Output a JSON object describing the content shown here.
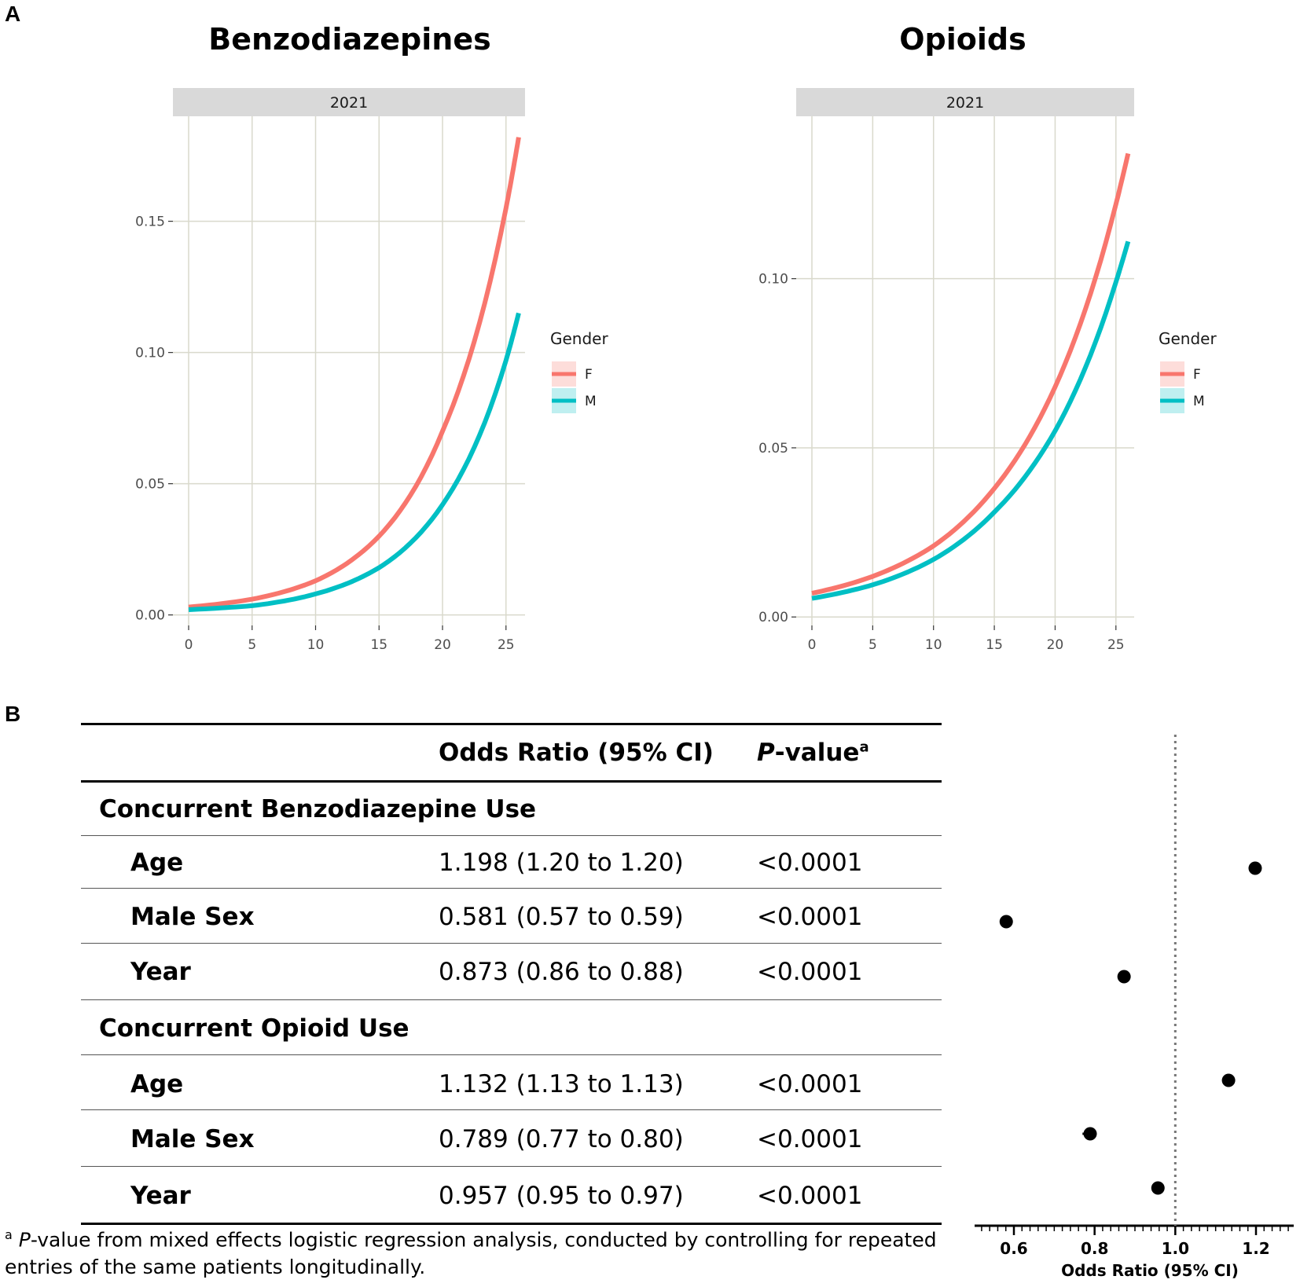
{
  "panel_labels": {
    "a": "A",
    "b": "B"
  },
  "colors": {
    "female": "#F8766D",
    "male": "#00BFC4",
    "strip": "#D9D9D9",
    "grid": "#D9D9CC"
  },
  "chart_data": [
    {
      "id": "benzo",
      "type": "line",
      "title": "Benzodiazepines",
      "facet_label": "2021",
      "xlabel": "",
      "ylabel": "",
      "xlim": [
        0,
        26.5
      ],
      "ylim": [
        -0.004,
        0.19
      ],
      "x_ticks": [
        "0",
        "5",
        "10",
        "15",
        "20",
        "25"
      ],
      "x_tick_values": [
        0,
        5,
        10,
        15,
        20,
        25
      ],
      "y_ticks": [
        "0.00",
        "0.05",
        "0.10",
        "0.15"
      ],
      "y_tick_values": [
        0.0,
        0.05,
        0.1,
        0.15
      ],
      "legend": {
        "title": "Gender",
        "position": "right",
        "entries": [
          "F",
          "M"
        ]
      },
      "series": [
        {
          "name": "F",
          "x": [
            0,
            5,
            10,
            15,
            20,
            25,
            26
          ],
          "values": [
            0.003,
            0.006,
            0.013,
            0.03,
            0.07,
            0.155,
            0.182
          ]
        },
        {
          "name": "M",
          "x": [
            0,
            5,
            10,
            15,
            20,
            25,
            26
          ],
          "values": [
            0.002,
            0.0035,
            0.008,
            0.018,
            0.042,
            0.097,
            0.115
          ]
        }
      ]
    },
    {
      "id": "opioid",
      "type": "line",
      "title": "Opioids",
      "facet_label": "2021",
      "xlabel": "",
      "ylabel": "",
      "xlim": [
        0,
        26.5
      ],
      "ylim": [
        -0.0025,
        0.148
      ],
      "x_ticks": [
        "0",
        "5",
        "10",
        "15",
        "20",
        "25"
      ],
      "x_tick_values": [
        0,
        5,
        10,
        15,
        20,
        25
      ],
      "y_ticks": [
        "0.00",
        "0.05",
        "0.10"
      ],
      "y_tick_values": [
        0.0,
        0.05,
        0.1
      ],
      "legend": {
        "title": "Gender",
        "position": "right",
        "entries": [
          "F",
          "M"
        ]
      },
      "series": [
        {
          "name": "F",
          "x": [
            0,
            5,
            10,
            15,
            20,
            25,
            26
          ],
          "values": [
            0.007,
            0.012,
            0.021,
            0.038,
            0.068,
            0.122,
            0.137
          ]
        },
        {
          "name": "M",
          "x": [
            0,
            5,
            10,
            15,
            20,
            25,
            26
          ],
          "values": [
            0.0055,
            0.0095,
            0.017,
            0.031,
            0.055,
            0.099,
            0.111
          ]
        }
      ]
    },
    {
      "id": "forest",
      "type": "scatter",
      "title": "",
      "xlabel": "Odds Ratio (95% CI)",
      "xlim": [
        0.5,
        1.3
      ],
      "x_ticks": [
        "0.6",
        "0.8",
        "1.0",
        "1.2"
      ],
      "x_tick_values": [
        0.6,
        0.8,
        1.0,
        1.2
      ],
      "reference_line": 1.0,
      "points": [
        {
          "label": "Benzodiazepine Age",
          "value": 1.198,
          "ci": [
            1.2,
            1.2
          ]
        },
        {
          "label": "Benzodiazepine Male Sex",
          "value": 0.581,
          "ci": [
            0.57,
            0.59
          ]
        },
        {
          "label": "Benzodiazepine Year",
          "value": 0.873,
          "ci": [
            0.86,
            0.88
          ]
        },
        {
          "label": "Opioid Age",
          "value": 1.132,
          "ci": [
            1.13,
            1.13
          ]
        },
        {
          "label": "Opioid Male Sex",
          "value": 0.789,
          "ci": [
            0.77,
            0.8
          ]
        },
        {
          "label": "Opioid Year",
          "value": 0.957,
          "ci": [
            0.95,
            0.97
          ]
        }
      ]
    }
  ],
  "table": {
    "header": {
      "or": "Odds Ratio (95% CI)",
      "p_italic": "P",
      "p_rest": "-value",
      "p_sup": "a"
    },
    "sections": [
      {
        "title": "Concurrent Benzodiazepine Use",
        "rows": [
          {
            "label": "Age",
            "or": "1.198 (1.20 to 1.20)",
            "p": "<0.0001"
          },
          {
            "label": "Male Sex",
            "or": "0.581 (0.57 to 0.59)",
            "p": "<0.0001"
          },
          {
            "label": "Year",
            "or": "0.873 (0.86 to 0.88)",
            "p": "<0.0001"
          }
        ]
      },
      {
        "title": "Concurrent Opioid Use",
        "rows": [
          {
            "label": "Age",
            "or": "1.132 (1.13 to 1.13)",
            "p": "<0.0001"
          },
          {
            "label": "Male Sex",
            "or": "0.789 (0.77 to 0.80)",
            "p": "<0.0001"
          },
          {
            "label": "Year",
            "or": "0.957 (0.95 to 0.97)",
            "p": "<0.0001"
          }
        ]
      }
    ]
  },
  "footnote": {
    "sup": "a",
    "italic": "P",
    "line1_rest": "-value from mixed effects logistic regression analysis, conducted by controlling for repeated",
    "line2": "entries of the same patients longitudinally."
  }
}
